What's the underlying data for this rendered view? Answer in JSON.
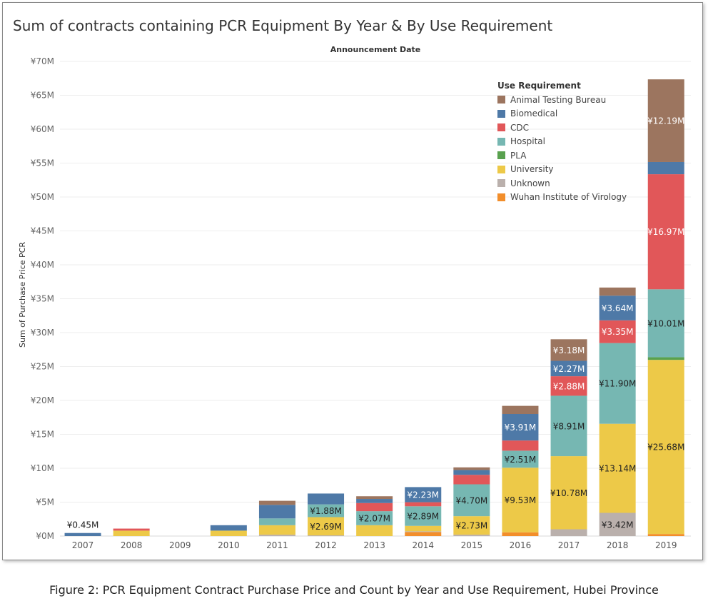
{
  "figure_caption": "Figure 2: PCR Equipment Contract Purchase Price and Count by Year and Use Requirement, Hubei Province",
  "chart_data": {
    "type": "bar",
    "stacked": true,
    "title": "Sum of contracts containing PCR Equipment By Year & By Use Requirement",
    "column_header": "Announcement Date",
    "xlabel": "",
    "ylabel": "Sum of Purchase Price PCR",
    "ylim": [
      0,
      70000000
    ],
    "yticks": [
      {
        "value": 0,
        "label": "¥0M"
      },
      {
        "value": 5000000,
        "label": "¥5M"
      },
      {
        "value": 10000000,
        "label": "¥10M"
      },
      {
        "value": 15000000,
        "label": "¥15M"
      },
      {
        "value": 20000000,
        "label": "¥20M"
      },
      {
        "value": 25000000,
        "label": "¥25M"
      },
      {
        "value": 30000000,
        "label": "¥30M"
      },
      {
        "value": 35000000,
        "label": "¥35M"
      },
      {
        "value": 40000000,
        "label": "¥40M"
      },
      {
        "value": 45000000,
        "label": "¥45M"
      },
      {
        "value": 50000000,
        "label": "¥50M"
      },
      {
        "value": 55000000,
        "label": "¥55M"
      },
      {
        "value": 60000000,
        "label": "¥60M"
      },
      {
        "value": 65000000,
        "label": "¥65M"
      },
      {
        "value": 70000000,
        "label": "¥70M"
      }
    ],
    "grid": true,
    "legend_title": "Use Requirement",
    "legend_position": "top-right",
    "categories": [
      "2007",
      "2008",
      "2009",
      "2010",
      "2011",
      "2012",
      "2013",
      "2014",
      "2015",
      "2016",
      "2017",
      "2018",
      "2019"
    ],
    "series": [
      {
        "name": "Wuhan Institute of Virology",
        "color": "#f28e2b",
        "values": [
          0,
          0,
          0,
          0,
          0,
          0,
          0,
          0.6,
          0,
          0.55,
          0,
          0,
          0.3
        ]
      },
      {
        "name": "Unknown",
        "color": "#bab0ac",
        "values": [
          0,
          0,
          0,
          0,
          0.2,
          0.1,
          0,
          0.1,
          0.2,
          0,
          1.0,
          3.42,
          0
        ]
      },
      {
        "name": "University",
        "color": "#edc948",
        "values": [
          0,
          0.8,
          0,
          0.8,
          1.4,
          2.69,
          1.6,
          0.8,
          2.73,
          9.53,
          10.78,
          13.14,
          25.68
        ]
      },
      {
        "name": "PLA",
        "color": "#59a14f",
        "values": [
          0,
          0,
          0,
          0,
          0,
          0,
          0,
          0,
          0,
          0,
          0,
          0,
          0.4
        ]
      },
      {
        "name": "Hospital",
        "color": "#76b7b2",
        "values": [
          0,
          0,
          0,
          0,
          1.0,
          1.88,
          2.07,
          2.89,
          4.7,
          2.51,
          8.91,
          11.9,
          10.01
        ]
      },
      {
        "name": "CDC",
        "color": "#e15759",
        "values": [
          0,
          0.3,
          0,
          0,
          0,
          0,
          1.2,
          0.6,
          1.4,
          1.5,
          2.88,
          3.35,
          16.97
        ]
      },
      {
        "name": "Biomedical",
        "color": "#4e79a7",
        "values": [
          0.45,
          0,
          0,
          0.8,
          2.0,
          1.6,
          0.6,
          2.23,
          0.7,
          3.91,
          2.27,
          3.64,
          1.8
        ]
      },
      {
        "name": "Animal Testing Bureau",
        "color": "#9c755f",
        "values": [
          0,
          0,
          0,
          0,
          0.6,
          0,
          0.4,
          0,
          0.4,
          1.2,
          3.18,
          1.2,
          12.19
        ]
      }
    ],
    "value_unit_multiplier": 1000000,
    "data_labels": [
      {
        "category": "2007",
        "series": "Biomedical",
        "text": "¥0.45M",
        "above": true
      },
      {
        "category": "2012",
        "series": "University",
        "text": "¥2.69M"
      },
      {
        "category": "2012",
        "series": "Hospital",
        "text": "¥1.88M"
      },
      {
        "category": "2013",
        "series": "Hospital",
        "text": "¥2.07M"
      },
      {
        "category": "2014",
        "series": "Hospital",
        "text": "¥2.89M"
      },
      {
        "category": "2014",
        "series": "Biomedical",
        "text": "¥2.23M"
      },
      {
        "category": "2015",
        "series": "University",
        "text": "¥2.73M"
      },
      {
        "category": "2015",
        "series": "Hospital",
        "text": "¥4.70M"
      },
      {
        "category": "2016",
        "series": "University",
        "text": "¥9.53M"
      },
      {
        "category": "2016",
        "series": "Hospital",
        "text": "¥2.51M"
      },
      {
        "category": "2016",
        "series": "Biomedical",
        "text": "¥3.91M"
      },
      {
        "category": "2017",
        "series": "University",
        "text": "¥10.78M"
      },
      {
        "category": "2017",
        "series": "Hospital",
        "text": "¥8.91M"
      },
      {
        "category": "2017",
        "series": "CDC",
        "text": "¥2.88M"
      },
      {
        "category": "2017",
        "series": "Biomedical",
        "text": "¥2.27M"
      },
      {
        "category": "2017",
        "series": "Animal Testing Bureau",
        "text": "¥3.18M"
      },
      {
        "category": "2018",
        "series": "Unknown",
        "text": "¥3.42M"
      },
      {
        "category": "2018",
        "series": "University",
        "text": "¥13.14M"
      },
      {
        "category": "2018",
        "series": "Hospital",
        "text": "¥11.90M"
      },
      {
        "category": "2018",
        "series": "CDC",
        "text": "¥3.35M"
      },
      {
        "category": "2018",
        "series": "Biomedical",
        "text": "¥3.64M"
      },
      {
        "category": "2019",
        "series": "University",
        "text": "¥25.68M"
      },
      {
        "category": "2019",
        "series": "Hospital",
        "text": "¥10.01M"
      },
      {
        "category": "2019",
        "series": "CDC",
        "text": "¥16.97M"
      },
      {
        "category": "2019",
        "series": "Animal Testing Bureau",
        "text": "¥12.19M"
      }
    ],
    "legend_order": [
      "Animal Testing Bureau",
      "Biomedical",
      "CDC",
      "Hospital",
      "PLA",
      "University",
      "Unknown",
      "Wuhan Institute of Virology"
    ]
  }
}
